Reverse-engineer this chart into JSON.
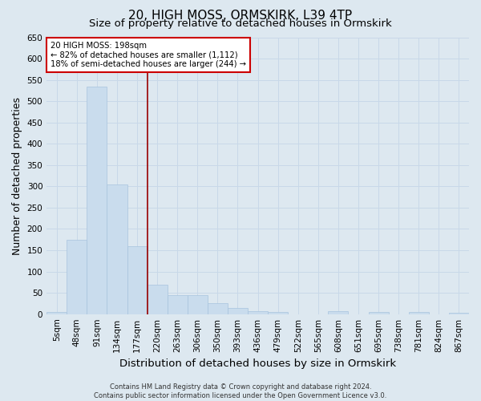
{
  "title": "20, HIGH MOSS, ORMSKIRK, L39 4TP",
  "subtitle": "Size of property relative to detached houses in Ormskirk",
  "xlabel": "Distribution of detached houses by size in Ormskirk",
  "ylabel": "Number of detached properties",
  "footer_line1": "Contains HM Land Registry data © Crown copyright and database right 2024.",
  "footer_line2": "Contains public sector information licensed under the Open Government Licence v3.0.",
  "bar_labels": [
    "5sqm",
    "48sqm",
    "91sqm",
    "134sqm",
    "177sqm",
    "220sqm",
    "263sqm",
    "306sqm",
    "350sqm",
    "393sqm",
    "436sqm",
    "479sqm",
    "522sqm",
    "565sqm",
    "608sqm",
    "651sqm",
    "695sqm",
    "738sqm",
    "781sqm",
    "824sqm",
    "867sqm"
  ],
  "bar_values": [
    5,
    175,
    535,
    305,
    160,
    70,
    45,
    45,
    25,
    15,
    7,
    5,
    0,
    0,
    6,
    0,
    5,
    0,
    5,
    0,
    3
  ],
  "bar_color": "#c9dced",
  "bar_edge_color": "#a8c4de",
  "grid_color": "#c8d8e8",
  "vline_color": "#990000",
  "annotation_line1": "20 HIGH MOSS: 198sqm",
  "annotation_line2": "← 82% of detached houses are smaller (1,112)",
  "annotation_line3": "18% of semi-detached houses are larger (244) →",
  "annotation_box_color": "white",
  "annotation_box_edge": "#cc0000",
  "ylim": [
    0,
    650
  ],
  "yticks": [
    0,
    50,
    100,
    150,
    200,
    250,
    300,
    350,
    400,
    450,
    500,
    550,
    600,
    650
  ],
  "background_color": "#dde8f0",
  "plot_bg_color": "#dde8f0",
  "title_fontsize": 11,
  "subtitle_fontsize": 9.5,
  "axis_label_fontsize": 9,
  "tick_fontsize": 7.5,
  "footer_fontsize": 6,
  "vline_x": 4.5
}
